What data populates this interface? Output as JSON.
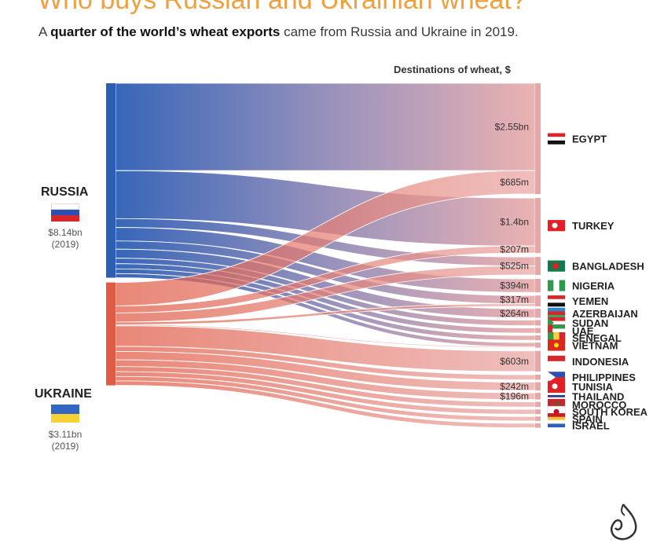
{
  "title": "Who buys Russian and Ukrainian wheat?",
  "subtitle": {
    "bold": "quarter of the world’s wheat exports",
    "prefix": "A",
    "suffix": "came from Russia and Ukraine in 2019."
  },
  "destinations_header": "Destinations of wheat, $",
  "colors": {
    "russia": "#2d5eb4",
    "ukraine": "#e05a44",
    "destination_bar": "#e8a6a6",
    "title": "#f0a040"
  },
  "sources": [
    {
      "name": "RUSSIA",
      "value_label": "$8.14bn",
      "year": "(2019)",
      "flag": [
        "#ffffff",
        "#2b4fb5",
        "#d8262a"
      ]
    },
    {
      "name": "UKRAINE",
      "value_label": "$3.11bn",
      "year": "(2019)",
      "flag": [
        "#3166c4",
        "#f8d135"
      ]
    }
  ],
  "chart_data": {
    "type": "sankey",
    "title": "Who buys Russian and Ukrainian wheat?",
    "unit": "USD",
    "sources": [
      {
        "name": "RUSSIA",
        "total_label": "$8.14bn"
      },
      {
        "name": "UKRAINE",
        "total_label": "$3.11bn"
      }
    ],
    "value_labels": [
      "$2.55bn",
      "$685m",
      "$1.4bn",
      "$207m",
      "$525m",
      "$394m",
      "$317m",
      "$264m",
      "$603m",
      "$242m",
      "$196m"
    ],
    "destinations": [
      "EGYPT",
      "TURKEY",
      "BANGLADESH",
      "NIGERIA",
      "YEMEN",
      "AZERBAIJAN",
      "SUDAN",
      "UAE",
      "SENEGAL",
      "VIETNAM",
      "INDONESIA",
      "PHILIPPINES",
      "TUNISIA",
      "THAILAND",
      "MOROCCO",
      "SOUTH KOREA",
      "SPAIN",
      "ISRAEL"
    ],
    "flows_usd_m": [
      {
        "from": "RUSSIA",
        "to": "EGYPT",
        "value": 2550
      },
      {
        "from": "UKRAINE",
        "to": "EGYPT",
        "value": 685
      },
      {
        "from": "RUSSIA",
        "to": "TURKEY",
        "value": 1400
      },
      {
        "from": "UKRAINE",
        "to": "TURKEY",
        "value": 207
      },
      {
        "from": "RUSSIA",
        "to": "BANGLADESH",
        "value": 260
      },
      {
        "from": "UKRAINE",
        "to": "BANGLADESH",
        "value": 265
      },
      {
        "from": "RUSSIA",
        "to": "NIGERIA",
        "value": 394
      },
      {
        "from": "RUSSIA",
        "to": "YEMEN",
        "value": 240
      },
      {
        "from": "UKRAINE",
        "to": "YEMEN",
        "value": 77
      },
      {
        "from": "RUSSIA",
        "to": "AZERBAIJAN",
        "value": 264
      },
      {
        "from": "RUSSIA",
        "to": "SUDAN",
        "value": 160
      },
      {
        "from": "RUSSIA",
        "to": "UAE",
        "value": 150
      },
      {
        "from": "RUSSIA",
        "to": "SENEGAL",
        "value": 140
      },
      {
        "from": "RUSSIA",
        "to": "VIETNAM",
        "value": 120
      },
      {
        "from": "UKRAINE",
        "to": "VIETNAM",
        "value": 30
      },
      {
        "from": "UKRAINE",
        "to": "INDONESIA",
        "value": 603
      },
      {
        "from": "UKRAINE",
        "to": "PHILIPPINES",
        "value": 150
      },
      {
        "from": "UKRAINE",
        "to": "TUNISIA",
        "value": 242
      },
      {
        "from": "UKRAINE",
        "to": "THAILAND",
        "value": 196
      },
      {
        "from": "UKRAINE",
        "to": "MOROCCO",
        "value": 150
      },
      {
        "from": "UKRAINE",
        "to": "SOUTH KOREA",
        "value": 140
      },
      {
        "from": "UKRAINE",
        "to": "SPAIN",
        "value": 130
      },
      {
        "from": "UKRAINE",
        "to": "ISRAEL",
        "value": 130
      }
    ]
  }
}
